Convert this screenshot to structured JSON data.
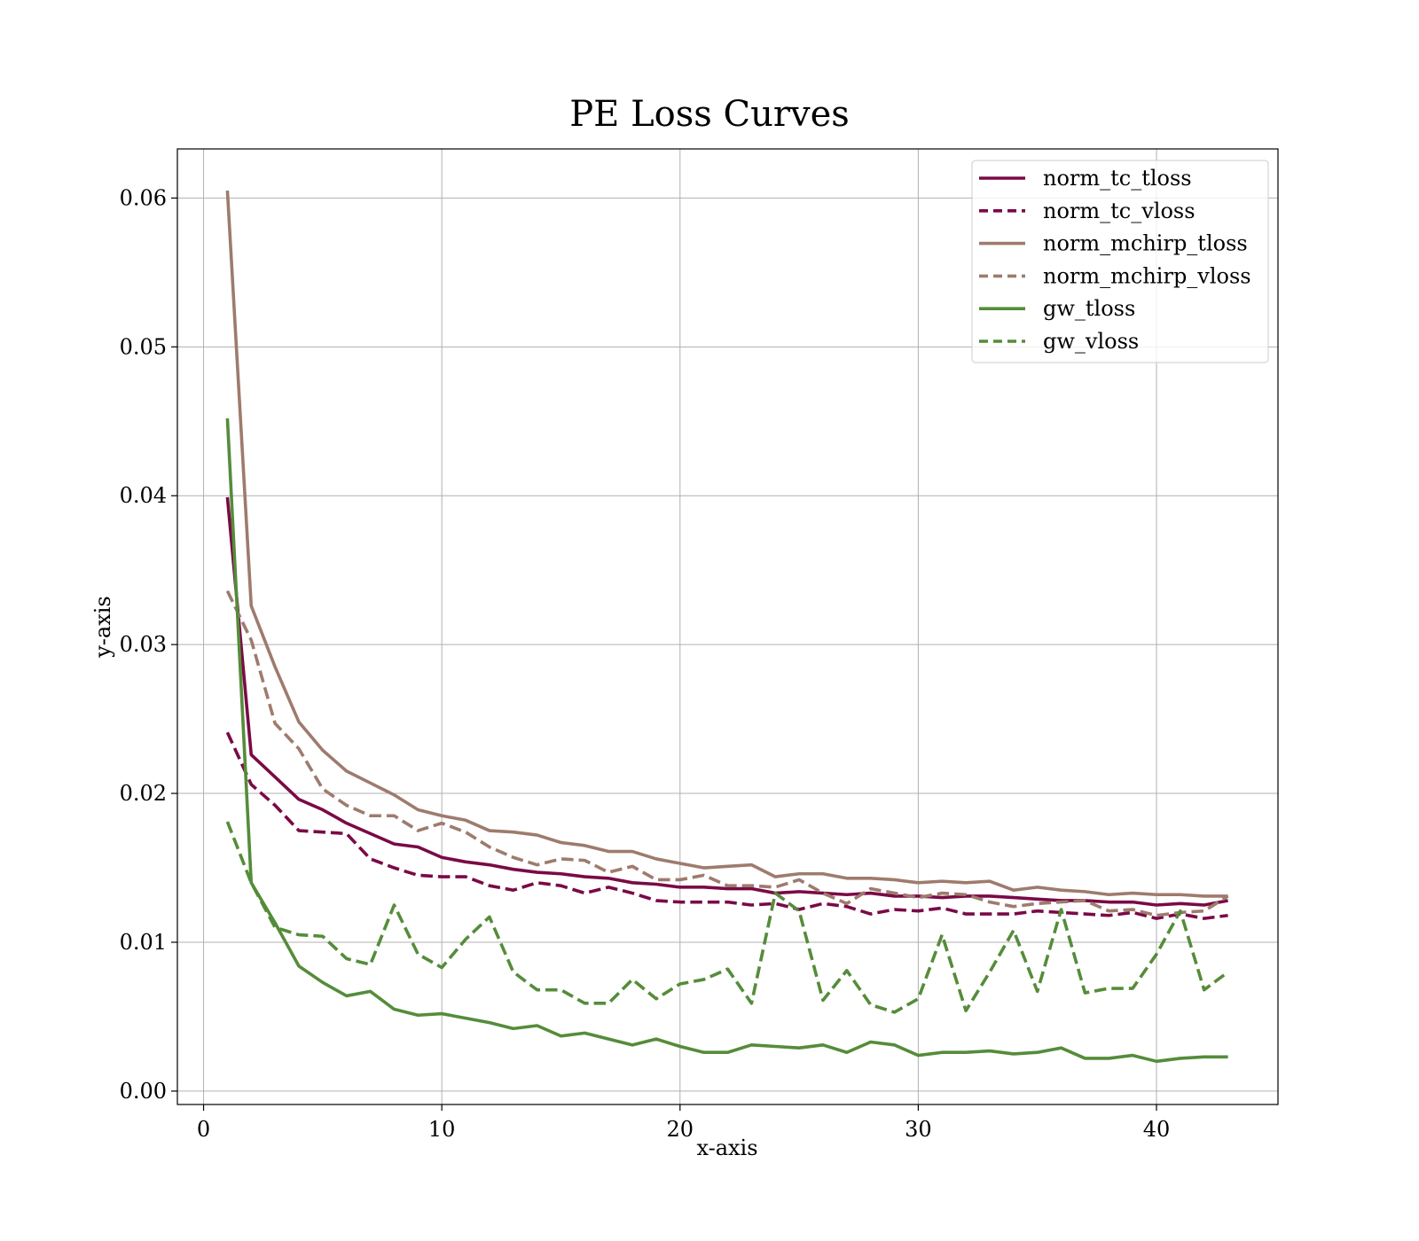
{
  "chart_data": {
    "type": "line",
    "title": "PE Loss Curves",
    "xlabel": "x-axis",
    "ylabel": "y-axis",
    "xlim": [
      -1.1,
      45.1
    ],
    "ylim": [
      -0.0009,
      0.0633
    ],
    "xticks": [
      0,
      10,
      20,
      30,
      40
    ],
    "xtick_labels": [
      "0",
      "10",
      "20",
      "30",
      "40"
    ],
    "yticks": [
      0.0,
      0.01,
      0.02,
      0.03,
      0.04,
      0.05,
      0.06
    ],
    "ytick_labels": [
      "0.00",
      "0.01",
      "0.02",
      "0.03",
      "0.04",
      "0.05",
      "0.06"
    ],
    "grid": true,
    "legend_position": "top-right",
    "x": [
      1,
      2,
      3,
      4,
      5,
      6,
      7,
      8,
      9,
      10,
      11,
      12,
      13,
      14,
      15,
      16,
      17,
      18,
      19,
      20,
      21,
      22,
      23,
      24,
      25,
      26,
      27,
      28,
      29,
      30,
      31,
      32,
      33,
      34,
      35,
      36,
      37,
      38,
      39,
      40,
      41,
      42,
      43
    ],
    "series": [
      {
        "name": "norm_tc_tloss",
        "color": "#7a0a46",
        "dash": "solid",
        "values": [
          0.0399,
          0.0226,
          0.0211,
          0.0196,
          0.0189,
          0.018,
          0.0173,
          0.0166,
          0.0164,
          0.0157,
          0.0154,
          0.0152,
          0.0149,
          0.0147,
          0.0146,
          0.0144,
          0.0143,
          0.014,
          0.0139,
          0.0137,
          0.0137,
          0.0136,
          0.0136,
          0.0133,
          0.0134,
          0.0133,
          0.0132,
          0.0133,
          0.0131,
          0.0131,
          0.013,
          0.0131,
          0.0131,
          0.013,
          0.0129,
          0.0128,
          0.0128,
          0.0127,
          0.0127,
          0.0125,
          0.0126,
          0.0125,
          0.0128
        ]
      },
      {
        "name": "norm_tc_vloss",
        "color": "#7a0a46",
        "dash": "dashed",
        "values": [
          0.0241,
          0.0206,
          0.0192,
          0.0175,
          0.0174,
          0.0173,
          0.0156,
          0.015,
          0.0145,
          0.0144,
          0.0144,
          0.0138,
          0.0135,
          0.014,
          0.0138,
          0.0133,
          0.0137,
          0.0133,
          0.0128,
          0.0127,
          0.0127,
          0.0127,
          0.0125,
          0.0126,
          0.0122,
          0.0126,
          0.0124,
          0.0119,
          0.0122,
          0.0121,
          0.0123,
          0.0119,
          0.0119,
          0.0119,
          0.0121,
          0.012,
          0.0119,
          0.0118,
          0.012,
          0.0116,
          0.0119,
          0.0116,
          0.0118
        ]
      },
      {
        "name": "norm_mchirp_tloss",
        "color": "#9e7b6d",
        "dash": "solid",
        "values": [
          0.0605,
          0.0326,
          0.0285,
          0.0248,
          0.0229,
          0.0215,
          0.0207,
          0.0199,
          0.0189,
          0.0185,
          0.0182,
          0.0175,
          0.0174,
          0.0172,
          0.0167,
          0.0165,
          0.0161,
          0.0161,
          0.0156,
          0.0153,
          0.015,
          0.0151,
          0.0152,
          0.0144,
          0.0146,
          0.0146,
          0.0143,
          0.0143,
          0.0142,
          0.014,
          0.0141,
          0.014,
          0.0141,
          0.0135,
          0.0137,
          0.0135,
          0.0134,
          0.0132,
          0.0133,
          0.0132,
          0.0132,
          0.0131,
          0.0131
        ]
      },
      {
        "name": "norm_mchirp_vloss",
        "color": "#9e7b6d",
        "dash": "dashed",
        "values": [
          0.0336,
          0.0303,
          0.0247,
          0.023,
          0.0203,
          0.0192,
          0.0185,
          0.0185,
          0.0175,
          0.018,
          0.0174,
          0.0164,
          0.0157,
          0.0152,
          0.0156,
          0.0155,
          0.0147,
          0.0151,
          0.0142,
          0.0142,
          0.0145,
          0.0138,
          0.0138,
          0.0137,
          0.0142,
          0.0133,
          0.0126,
          0.0136,
          0.0133,
          0.013,
          0.0133,
          0.0132,
          0.0127,
          0.0124,
          0.0126,
          0.0127,
          0.0128,
          0.0121,
          0.0122,
          0.0118,
          0.012,
          0.0121,
          0.0131
        ]
      },
      {
        "name": "gw_tloss",
        "color": "#558c3a",
        "dash": "solid",
        "values": [
          0.0452,
          0.014,
          0.0113,
          0.0084,
          0.0073,
          0.0064,
          0.0067,
          0.0055,
          0.0051,
          0.0052,
          0.0049,
          0.0046,
          0.0042,
          0.0044,
          0.0037,
          0.0039,
          0.0035,
          0.0031,
          0.0035,
          0.003,
          0.0026,
          0.0026,
          0.0031,
          0.003,
          0.0029,
          0.0031,
          0.0026,
          0.0033,
          0.0031,
          0.0024,
          0.0026,
          0.0026,
          0.0027,
          0.0025,
          0.0026,
          0.0029,
          0.0022,
          0.0022,
          0.0024,
          0.002,
          0.0022,
          0.0023,
          0.0023
        ]
      },
      {
        "name": "gw_vloss",
        "color": "#558c3a",
        "dash": "dashed",
        "values": [
          0.0181,
          0.014,
          0.011,
          0.0105,
          0.0104,
          0.0089,
          0.0085,
          0.0125,
          0.0092,
          0.0083,
          0.0102,
          0.0117,
          0.008,
          0.0068,
          0.0068,
          0.0059,
          0.0059,
          0.0075,
          0.0062,
          0.0072,
          0.0075,
          0.0082,
          0.0059,
          0.0133,
          0.0121,
          0.0061,
          0.0081,
          0.0058,
          0.0053,
          0.0062,
          0.0105,
          0.0054,
          0.008,
          0.0108,
          0.0067,
          0.0122,
          0.0066,
          0.0069,
          0.0069,
          0.0092,
          0.0121,
          0.0068,
          0.008
        ]
      }
    ]
  }
}
